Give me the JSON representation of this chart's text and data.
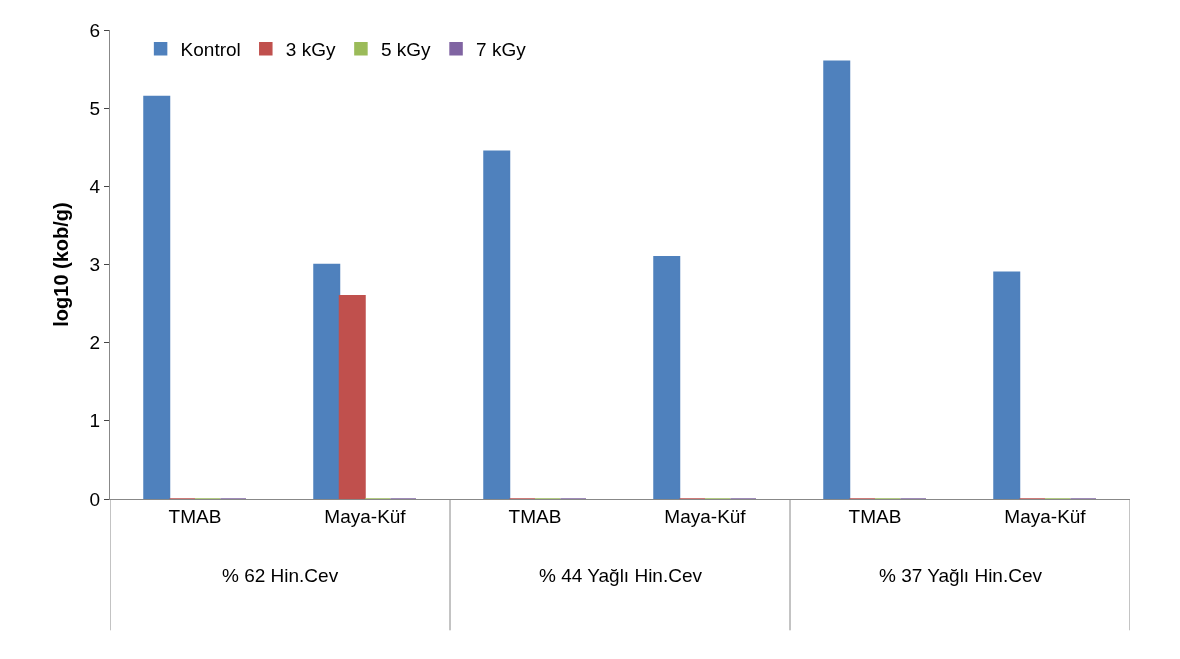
{
  "chart_data": {
    "type": "bar",
    "ylabel": "log10 (kob/g)",
    "categories": [
      "TMAB",
      "Maya-Küf",
      "TMAB",
      "Maya-Küf",
      "TMAB",
      "Maya-Küf"
    ],
    "series": [
      {
        "name": "Kontrol",
        "color": "#4f81bd",
        "values": [
          5.15,
          3.0,
          4.45,
          3.1,
          5.6,
          2.9
        ]
      },
      {
        "name": "3 kGy",
        "color": "#c0504d",
        "values": [
          0,
          2.6,
          0,
          0,
          0,
          0
        ]
      },
      {
        "name": "5 kGy",
        "color": "#9bbb59",
        "values": [
          0,
          0,
          0,
          0,
          0,
          0
        ]
      },
      {
        "name": "7 kGy",
        "color": "#8064a2",
        "values": [
          0,
          0,
          0,
          0,
          0,
          0
        ]
      }
    ],
    "annotations": [
      "% 62 Hin.Cev",
      "% 44 Yağlı Hin.Cev",
      "% 37 Yağlı Hin.Cev"
    ],
    "ylim": [
      0,
      6
    ],
    "yticks": [
      0,
      1,
      2,
      3,
      4,
      5,
      6
    ],
    "legend": "top left"
  }
}
